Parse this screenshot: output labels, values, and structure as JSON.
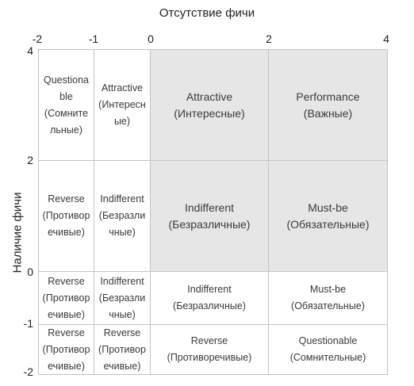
{
  "x_axis_title": "Отсутствие фичи",
  "y_axis_title": "Наличие фичи",
  "x_ticks": [
    "-2",
    "-1",
    "0",
    "2",
    "4"
  ],
  "y_ticks": [
    "4",
    "2",
    "0",
    "-1",
    "-2"
  ],
  "cells": {
    "r1c1": "Questiona\nble\n(Сомните\nльные)",
    "r1c2": "Attractive\n(Интересн\nые)",
    "r1c3": "Attractive\n(Интересные)",
    "r1c4": "Performance\n(Важные)",
    "r2c1": "Reverse\n(Противор\nечивые)",
    "r2c2": "Indifferent\n(Безразли\nчные)",
    "r2c3": "Indifferent\n(Безразличные)",
    "r2c4": "Must-be\n(Обязательные)",
    "r3c1": "Reverse\n(Противор\nечивые)",
    "r3c2": "Indifferent\n(Безразли\nчные)",
    "r3c3": "Indifferent\n(Безразличные)",
    "r3c4": "Must-be\n(Обязательные)",
    "r4c1": "Reverse\n(Противор\nечивые)",
    "r4c2": "Reverse\n(Противор\nечивые)",
    "r4c3": "Reverse\n(Противоречивые)",
    "r4c4": "Questionable\n(Сомнительные)"
  },
  "colors": {
    "highlight_fill": "#e6e6e6",
    "cell_fill": "#ffffff",
    "grid_line": "#c4c4c4"
  }
}
